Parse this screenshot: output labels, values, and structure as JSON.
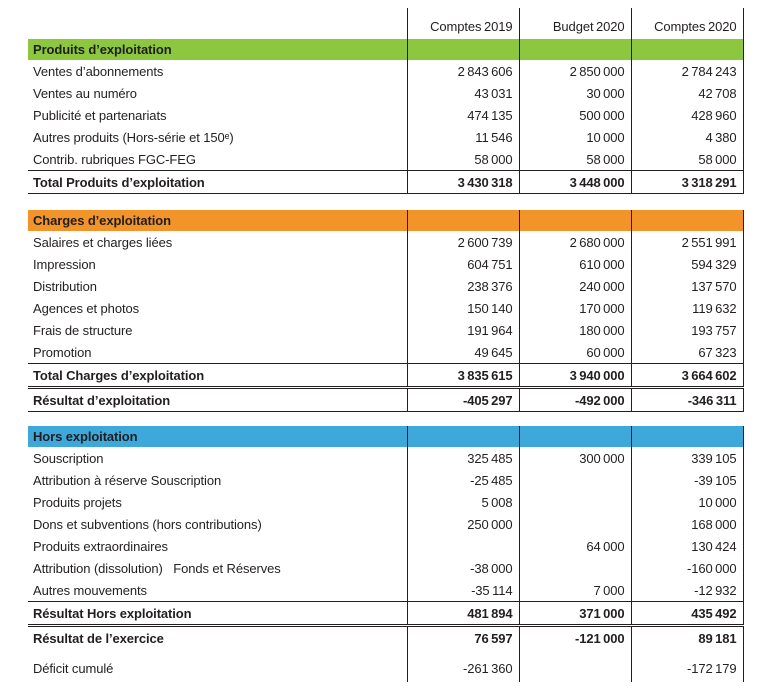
{
  "columns": [
    "Comptes 2019",
    "Budget 2020",
    "Comptes 2020"
  ],
  "colors": {
    "produits": "#8dc63f",
    "charges": "#f29429",
    "hors": "#3ea8db",
    "text": "#231f20"
  },
  "sections": [
    {
      "title": "Produits d’exploitation",
      "rows": [
        {
          "label": "Ventes d’abonnements",
          "values": [
            "2 843 606",
            "2 850 000",
            "2 784 243"
          ]
        },
        {
          "label": "Ventes au numéro",
          "values": [
            "43 031",
            "30 000",
            "42 708"
          ]
        },
        {
          "label": "Publicité et partenariats",
          "values": [
            "474 135",
            "500 000",
            "428 960"
          ]
        },
        {
          "label": "Autres produits (Hors-série et 150ᵉ)",
          "values": [
            "11 546",
            "10 000",
            "4 380"
          ]
        },
        {
          "label": "Contrib. rubriques FGC-FEG",
          "values": [
            "58 000",
            "58 000",
            "58 000"
          ]
        }
      ],
      "total": {
        "label": "Total Produits d’exploitation",
        "values": [
          "3 430 318",
          "3 448 000",
          "3 318 291"
        ]
      }
    },
    {
      "title": "Charges d’exploitation",
      "rows": [
        {
          "label": "Salaires et charges liées",
          "values": [
            "2 600 739",
            "2 680 000",
            "2 551 991"
          ]
        },
        {
          "label": "Impression",
          "values": [
            "604 751",
            "610 000",
            "594 329"
          ]
        },
        {
          "label": "Distribution",
          "values": [
            "238 376",
            "240 000",
            "137 570"
          ]
        },
        {
          "label": "Agences et photos",
          "values": [
            "150 140",
            "170 000",
            "119 632"
          ]
        },
        {
          "label": "Frais de structure",
          "values": [
            "191 964",
            "180 000",
            "193 757"
          ]
        },
        {
          "label": "Promotion",
          "values": [
            "49 645",
            "60 000",
            "67 323"
          ]
        }
      ],
      "total": {
        "label": "Total Charges d’exploitation",
        "values": [
          "3 835 615",
          "3 940 000",
          "3 664 602"
        ]
      },
      "result": {
        "label": "Résultat d’exploitation",
        "values": [
          "-405 297",
          "-492 000",
          "-346 311"
        ]
      }
    },
    {
      "title": "Hors exploitation",
      "rows": [
        {
          "label": "Souscription",
          "values": [
            "325 485",
            "300 000",
            "339 105"
          ]
        },
        {
          "label": "Attribution à réserve Souscription",
          "values": [
            "-25 485",
            "",
            "-39 105"
          ]
        },
        {
          "label": "Produits projets",
          "values": [
            "5 008",
            "",
            "10 000"
          ]
        },
        {
          "label": "Dons et subventions (hors contributions)",
          "values": [
            "250 000",
            "",
            "168 000"
          ]
        },
        {
          "label": "Produits extraordinaires",
          "values": [
            "",
            "64 000",
            "130 424"
          ]
        },
        {
          "label": "Attribution (dissolution)   Fonds et Réserves",
          "values": [
            "-38 000",
            "",
            "-160 000"
          ]
        },
        {
          "label": "Autres mouvements",
          "values": [
            "-35 114",
            "7 000",
            "-12 932"
          ]
        }
      ],
      "total": {
        "label": "Résultat Hors exploitation",
        "values": [
          "481 894",
          "371 000",
          "435 492"
        ]
      },
      "result": {
        "label": "Résultat de l’exercice",
        "values": [
          "76 597",
          "-121 000",
          "89 181"
        ]
      },
      "extra": {
        "label": "Déficit cumulé",
        "values": [
          "-261 360",
          "",
          "-172 179"
        ]
      }
    }
  ]
}
